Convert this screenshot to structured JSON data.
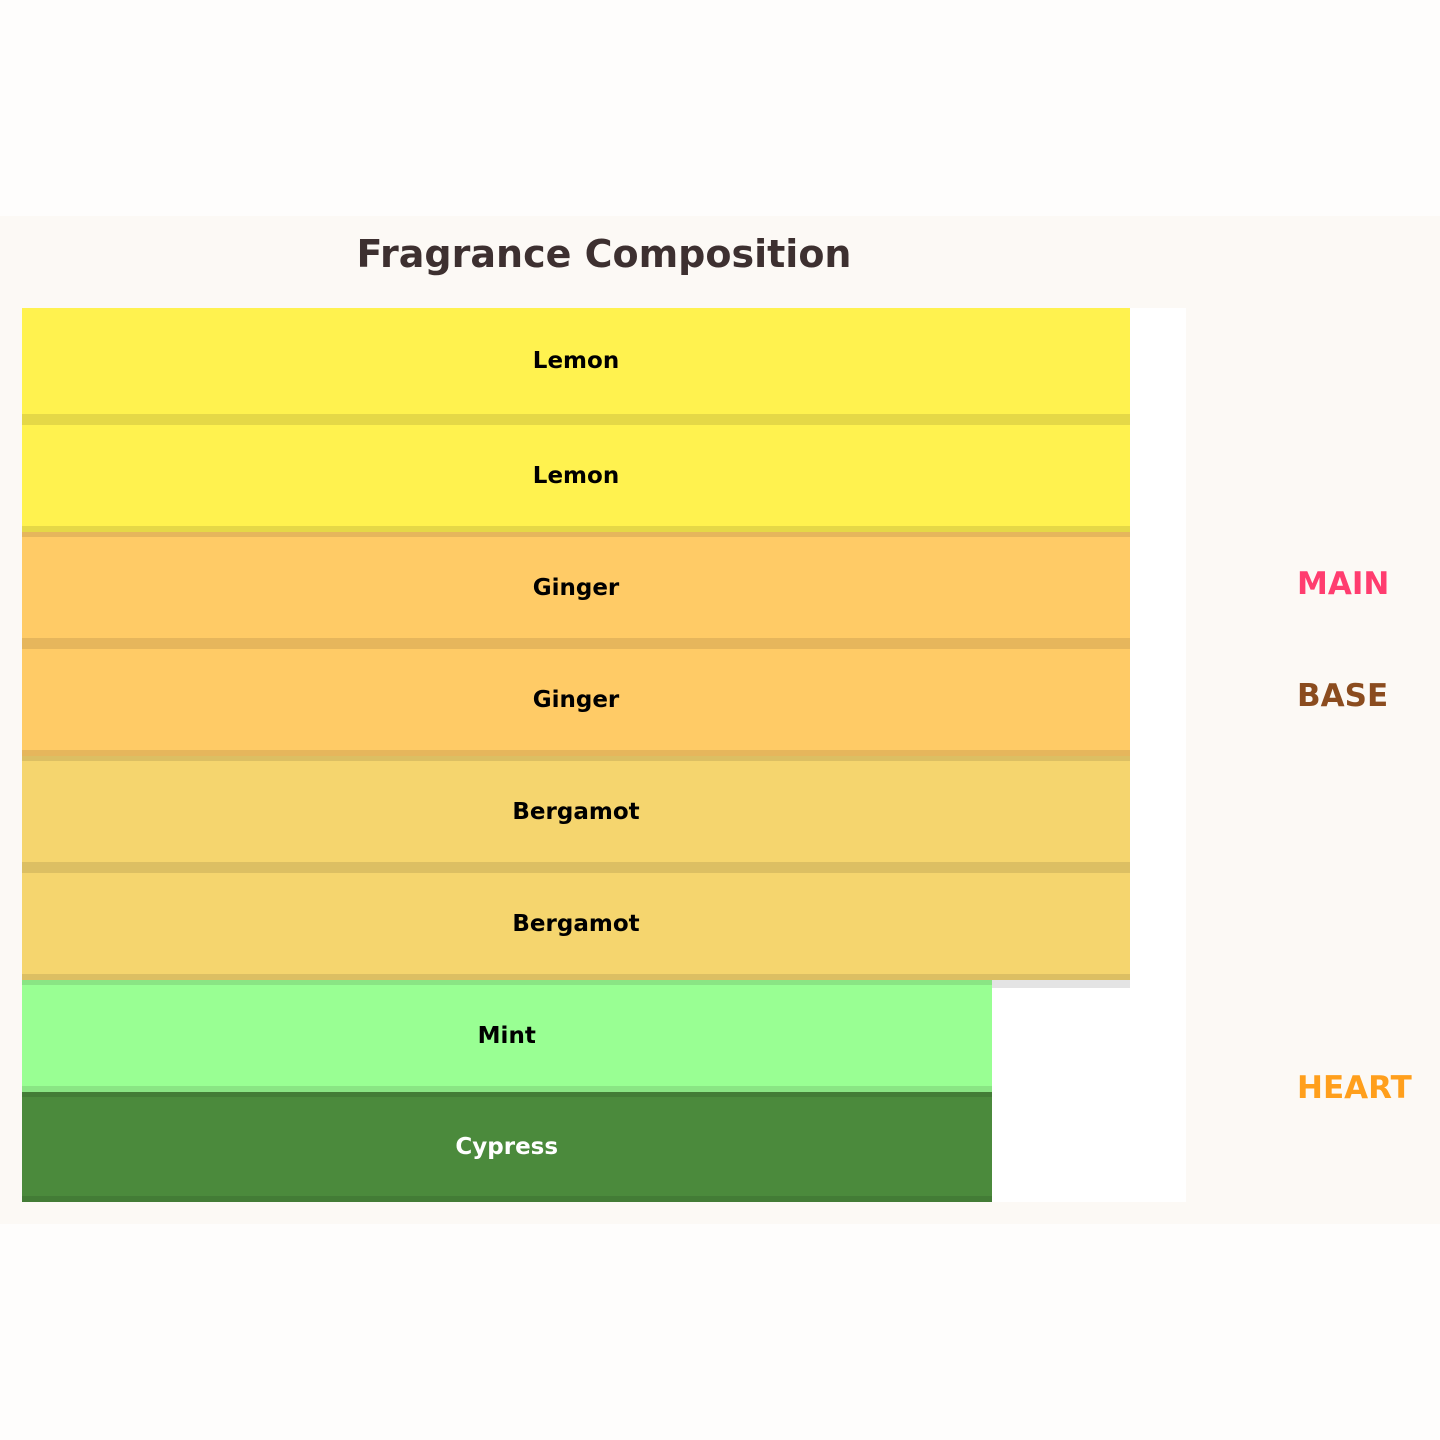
{
  "chart_data": {
    "type": "bar",
    "orientation": "horizontal-stacked-layers",
    "title": "Fragrance Composition",
    "categories": [
      "Lemon",
      "Lemon",
      "Ginger",
      "Ginger",
      "Bergamot",
      "Bergamot",
      "Mint",
      "Cypress"
    ],
    "values": [
      100,
      100,
      100,
      100,
      100,
      100,
      87.5,
      87.5
    ],
    "colors": [
      "#fff24f",
      "#fff24f",
      "#ffcb66",
      "#ffcb66",
      "#f5d56e",
      "#f5d56e",
      "#99ff93",
      "#4b8a3c"
    ],
    "stripe_colors": [
      "#e5d847",
      "#e5d847",
      "#e6b65c",
      "#e6b65c",
      "#dcbf63",
      "#dcbf63",
      "#8ae584",
      "#437c36"
    ],
    "label_colors": [
      "#000000",
      "#000000",
      "#000000",
      "#000000",
      "#000000",
      "#000000",
      "#000000",
      "#ffffff"
    ],
    "legend": [
      {
        "label": "MAIN",
        "color": "#ff3d6f"
      },
      {
        "label": "BASE",
        "color": "#8b4c1f"
      },
      {
        "label": "HEART",
        "color": "#ff9f1c"
      }
    ]
  }
}
